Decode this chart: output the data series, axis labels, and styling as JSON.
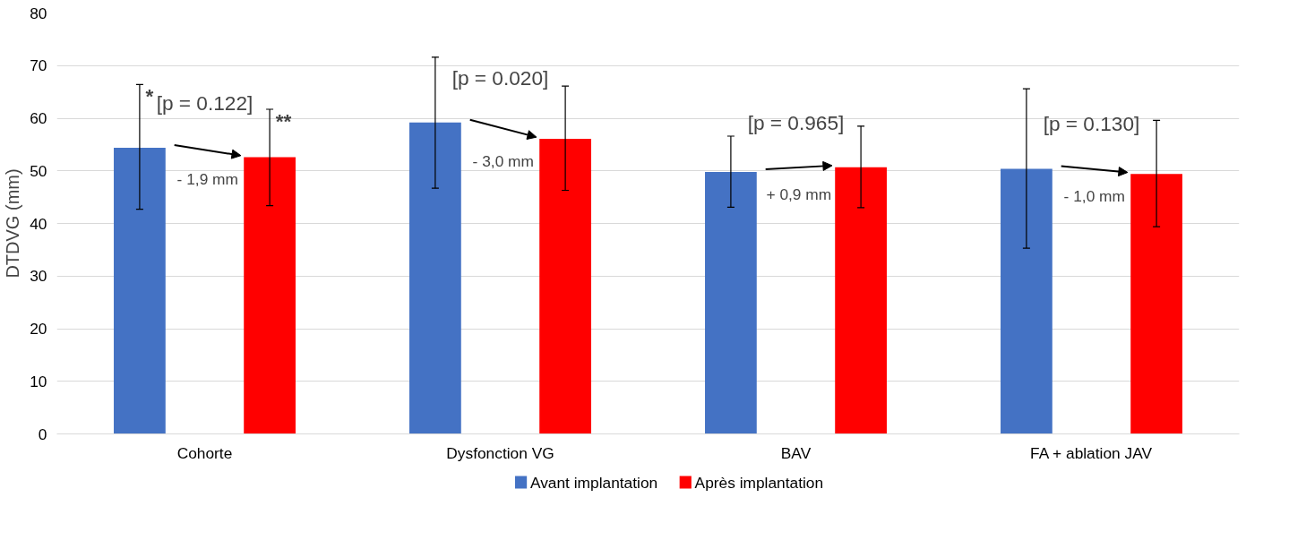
{
  "chart_data": {
    "type": "bar",
    "ylabel": "DTDVG (mm)",
    "categories": [
      "Cohorte",
      "Dysfonction VG",
      "BAV",
      "FA + ablation JAV"
    ],
    "series": [
      {
        "name": "Avant implantation",
        "color": "#4472c4",
        "values": [
          54.4,
          59.2,
          49.8,
          50.4
        ],
        "errors": [
          [
            42.7,
            66.4
          ],
          [
            46.7,
            71.6
          ],
          [
            43.1,
            56.6
          ],
          [
            35.3,
            65.6
          ]
        ]
      },
      {
        "name": "Après implantation",
        "color": "#ff0000",
        "values": [
          52.6,
          56.1,
          50.7,
          49.4
        ],
        "errors": [
          [
            43.4,
            61.7
          ],
          [
            46.3,
            66.1
          ],
          [
            43.0,
            58.5
          ],
          [
            39.4,
            59.6
          ]
        ]
      }
    ],
    "ylim": [
      0,
      80
    ],
    "yticks": [
      0,
      10,
      20,
      30,
      40,
      50,
      60,
      70,
      80
    ],
    "grid": "y",
    "legend": "bottom",
    "annotations": [
      "[p = 0.122]",
      "- 1,9 mm",
      "[p = 0.020]",
      "- 3,0 mm",
      "[p = 0.965]",
      "+ 0,9 mm",
      "[p = 0.130]",
      "- 1,0 mm",
      "*",
      "**"
    ]
  }
}
